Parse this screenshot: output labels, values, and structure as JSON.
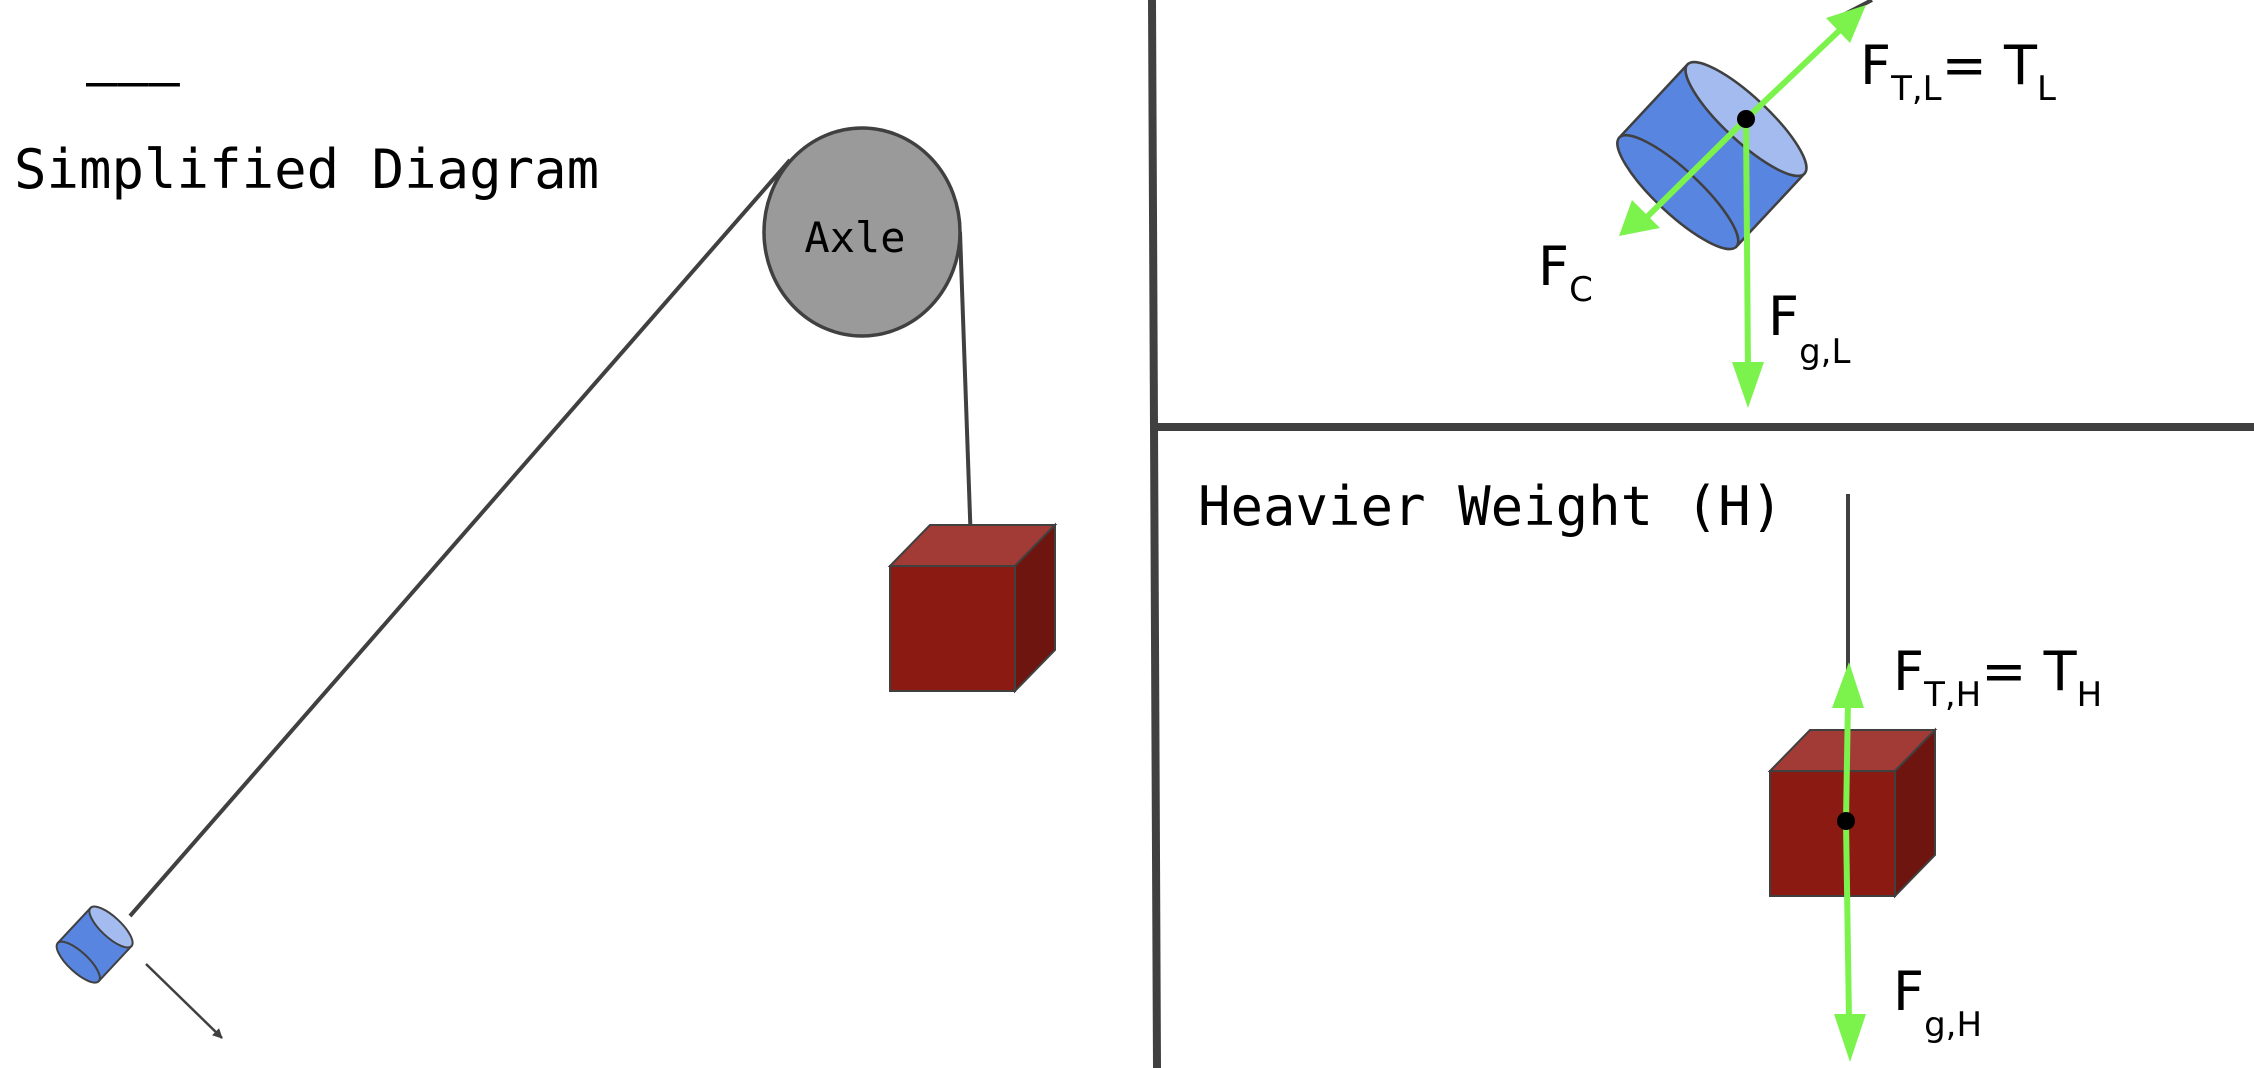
{
  "left_panel": {
    "dashes": "———",
    "title": "Simplified Diagram",
    "axle_label": "Axle"
  },
  "top_right_panel": {
    "tension_label": {
      "main": "F",
      "sub": "T,L",
      "eq": "= T",
      "eq_sub": "L"
    },
    "centripetal_label": {
      "main": "F",
      "sub": "C"
    },
    "gravity_label": {
      "main": "F",
      "sub": "g,L"
    }
  },
  "bottom_right_panel": {
    "title": "Heavier Weight (H)",
    "tension_label": {
      "main": "F",
      "sub": "T,H",
      "eq": "= T",
      "eq_sub": "H"
    },
    "gravity_label": {
      "main": "F",
      "sub": "g,H"
    }
  },
  "colors": {
    "arrow": "#7cf34d",
    "cylinder": "#5885e0",
    "cylinder_top": "#a3bbee",
    "block_front": "#8b1a12",
    "block_top": "#a23a35",
    "block_side": "#6e150f",
    "axle": "#9a9a9a",
    "line": "#404040"
  }
}
